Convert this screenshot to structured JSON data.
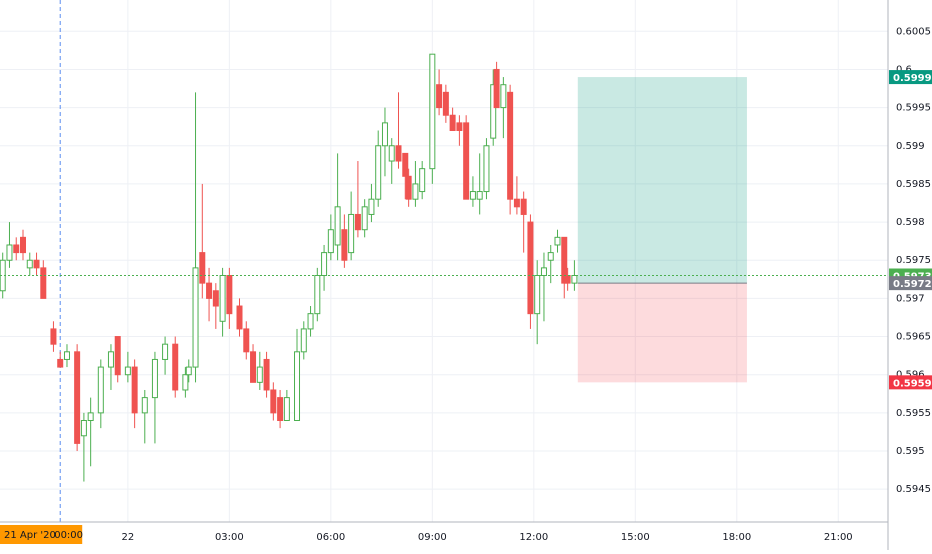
{
  "chart_data": {
    "type": "candlestick",
    "x": [
      -3.7,
      -3.5,
      -3.3,
      -3.1,
      -2.9,
      -2.7,
      -2.5,
      -2.2,
      -2.0,
      -1.8,
      -1.5,
      -1.3,
      -1.1,
      -0.8,
      -0.5,
      -0.3,
      0,
      0.2,
      0.5,
      0.8,
      1.1,
      1.4,
      1.7,
      1.8,
      2.0,
      2.2,
      2.4,
      2.6,
      2.8,
      3.0,
      3.3,
      3.5,
      3.7,
      3.9,
      4.1,
      4.3,
      4.5,
      4.7,
      5.0,
      5.2,
      5.4,
      5.6,
      5.8,
      6.0,
      6.2,
      6.4,
      6.6,
      6.8,
      7.0,
      7.2,
      7.4,
      7.6,
      7.8,
      8.0,
      8.2,
      8.3,
      8.5,
      8.7,
      9.0,
      9.2,
      9.4,
      9.6,
      9.8,
      10.0,
      10.2,
      10.4,
      10.6,
      10.8,
      10.9,
      11.1,
      11.3,
      11.5,
      11.7,
      11.9,
      12.1,
      12.3,
      12.5,
      12.7,
      12.9,
      13.0,
      13.2
    ],
    "open": [
      0.5971,
      0.5975,
      0.5977,
      0.5978,
      0.5974,
      0.5975,
      0.5974,
      0.5966,
      0.5962,
      0.5962,
      0.5963,
      0.5952,
      0.5954,
      0.5955,
      0.5961,
      0.5965,
      0.596,
      0.5961,
      0.5955,
      0.5957,
      0.5962,
      0.5964,
      0.5958,
      0.596,
      0.5961,
      0.5976,
      0.5972,
      0.5971,
      0.5967,
      0.5973,
      0.5969,
      0.5966,
      0.5963,
      0.5959,
      0.5962,
      0.5958,
      0.5957,
      0.5954,
      0.5954,
      0.5963,
      0.5966,
      0.5968,
      0.5973,
      0.5976,
      0.5977,
      0.5979,
      0.5976,
      0.5981,
      0.5979,
      0.5981,
      0.5983,
      0.599,
      0.5988,
      0.599,
      0.5989,
      0.5986,
      0.5983,
      0.5984,
      0.5987,
      0.5998,
      0.5997,
      0.5994,
      0.5993,
      0.5993,
      0.5983,
      0.5983,
      0.5984,
      0.5991,
      0.6,
      0.5995,
      0.5997,
      0.5983,
      0.5983,
      0.598,
      0.5968,
      0.5973,
      0.5975,
      0.5977,
      0.5978,
      0.5973,
      0.5972
    ],
    "high": [
      0.5976,
      0.598,
      0.5978,
      0.5979,
      0.5976,
      0.5976,
      0.5975,
      0.5967,
      0.5963,
      0.5964,
      0.5964,
      0.5955,
      0.5957,
      0.5962,
      0.5964,
      0.5965,
      0.5963,
      0.5962,
      0.5958,
      0.5963,
      0.5965,
      0.5965,
      0.5961,
      0.5962,
      0.5997,
      0.5985,
      0.5974,
      0.5972,
      0.5974,
      0.5974,
      0.597,
      0.5967,
      0.5964,
      0.5963,
      0.5963,
      0.5959,
      0.5958,
      0.5958,
      0.5966,
      0.5967,
      0.5969,
      0.5974,
      0.5977,
      0.5981,
      0.5989,
      0.5981,
      0.5984,
      0.5988,
      0.5983,
      0.5985,
      0.5992,
      0.5995,
      0.5991,
      0.5997,
      0.5989,
      0.5987,
      0.5988,
      0.5988,
      0.6002,
      0.6,
      0.5998,
      0.5995,
      0.5994,
      0.5994,
      0.5986,
      0.5989,
      0.5991,
      0.6,
      0.6001,
      0.5999,
      0.5998,
      0.5986,
      0.5984,
      0.5981,
      0.5975,
      0.5976,
      0.5977,
      0.5979,
      0.5978,
      0.5974,
      0.5975
    ],
    "low": [
      0.597,
      0.5974,
      0.5975,
      0.5975,
      0.5973,
      0.5973,
      0.597,
      0.5963,
      0.5961,
      0.5961,
      0.595,
      0.5946,
      0.5948,
      0.5953,
      0.5958,
      0.5959,
      0.5959,
      0.5953,
      0.5951,
      0.5951,
      0.596,
      0.5957,
      0.5957,
      0.5959,
      0.5959,
      0.597,
      0.5967,
      0.5966,
      0.5965,
      0.5966,
      0.5965,
      0.5962,
      0.5959,
      0.5958,
      0.5957,
      0.5954,
      0.5953,
      0.5954,
      0.5954,
      0.5962,
      0.5965,
      0.5967,
      0.5971,
      0.5975,
      0.5975,
      0.5974,
      0.5975,
      0.5978,
      0.5978,
      0.598,
      0.5982,
      0.5986,
      0.5985,
      0.5987,
      0.5983,
      0.5982,
      0.5982,
      0.5983,
      0.5985,
      0.5994,
      0.5993,
      0.5992,
      0.599,
      0.5983,
      0.5982,
      0.5981,
      0.5983,
      0.599,
      0.5995,
      0.5991,
      0.5981,
      0.5981,
      0.5976,
      0.5966,
      0.5964,
      0.5967,
      0.5972,
      0.5976,
      0.597,
      0.5971,
      0.5971
    ],
    "close": [
      0.5975,
      0.5977,
      0.5976,
      0.5976,
      0.5975,
      0.5974,
      0.597,
      0.5964,
      0.5961,
      0.5963,
      0.5951,
      0.5954,
      0.5955,
      0.5961,
      0.5963,
      0.596,
      0.5961,
      0.5955,
      0.5957,
      0.5962,
      0.5964,
      0.5958,
      0.596,
      0.5961,
      0.5974,
      0.5972,
      0.597,
      0.5969,
      0.5973,
      0.5968,
      0.5966,
      0.5963,
      0.5959,
      0.5961,
      0.5958,
      0.5955,
      0.5954,
      0.5957,
      0.5963,
      0.5966,
      0.5968,
      0.5973,
      0.5976,
      0.5979,
      0.5982,
      0.5975,
      0.5981,
      0.5979,
      0.5982,
      0.5983,
      0.599,
      0.5993,
      0.599,
      0.5988,
      0.5986,
      0.5983,
      0.5985,
      0.5987,
      0.6002,
      0.5995,
      0.5994,
      0.5992,
      0.5992,
      0.5983,
      0.5984,
      0.5984,
      0.599,
      0.5998,
      0.5995,
      0.5998,
      0.5983,
      0.5982,
      0.5981,
      0.5968,
      0.5973,
      0.5974,
      0.5976,
      0.5978,
      0.5972,
      0.5972,
      0.5973
    ],
    "up_color": "#4caf50",
    "down_color": "#ef5350",
    "xlim": [
      -3.78,
      22.47
    ],
    "ylim": [
      0.59407,
      0.60091
    ],
    "xticks": [
      {
        "value": 0,
        "label": "22"
      },
      {
        "value": 3,
        "label": "03:00"
      },
      {
        "value": 6,
        "label": "06:00"
      },
      {
        "value": 9,
        "label": "09:00"
      },
      {
        "value": 12,
        "label": "12:00"
      },
      {
        "value": 15,
        "label": "15:00"
      },
      {
        "value": 18,
        "label": "18:00"
      },
      {
        "value": 21,
        "label": "21:00"
      }
    ],
    "yticks": [
      0.5945,
      0.595,
      0.5955,
      0.596,
      0.5965,
      0.597,
      0.5975,
      0.598,
      0.5985,
      0.599,
      0.5995,
      0.6,
      0.6005
    ],
    "grid": true,
    "last_price": {
      "value": 0.5973,
      "color": "#4caf50"
    },
    "position": {
      "start": 13.3,
      "end": 18.3,
      "entry": 0.5972,
      "target": 0.5999,
      "stop": 0.5959,
      "entry_color": "#787b86",
      "target_color": "#089981",
      "stop_color": "#f23645"
    },
    "crosshair": {
      "x": -2.0,
      "date": "21 Apr '20",
      "time": "00:00",
      "color": "#ff9800"
    }
  }
}
